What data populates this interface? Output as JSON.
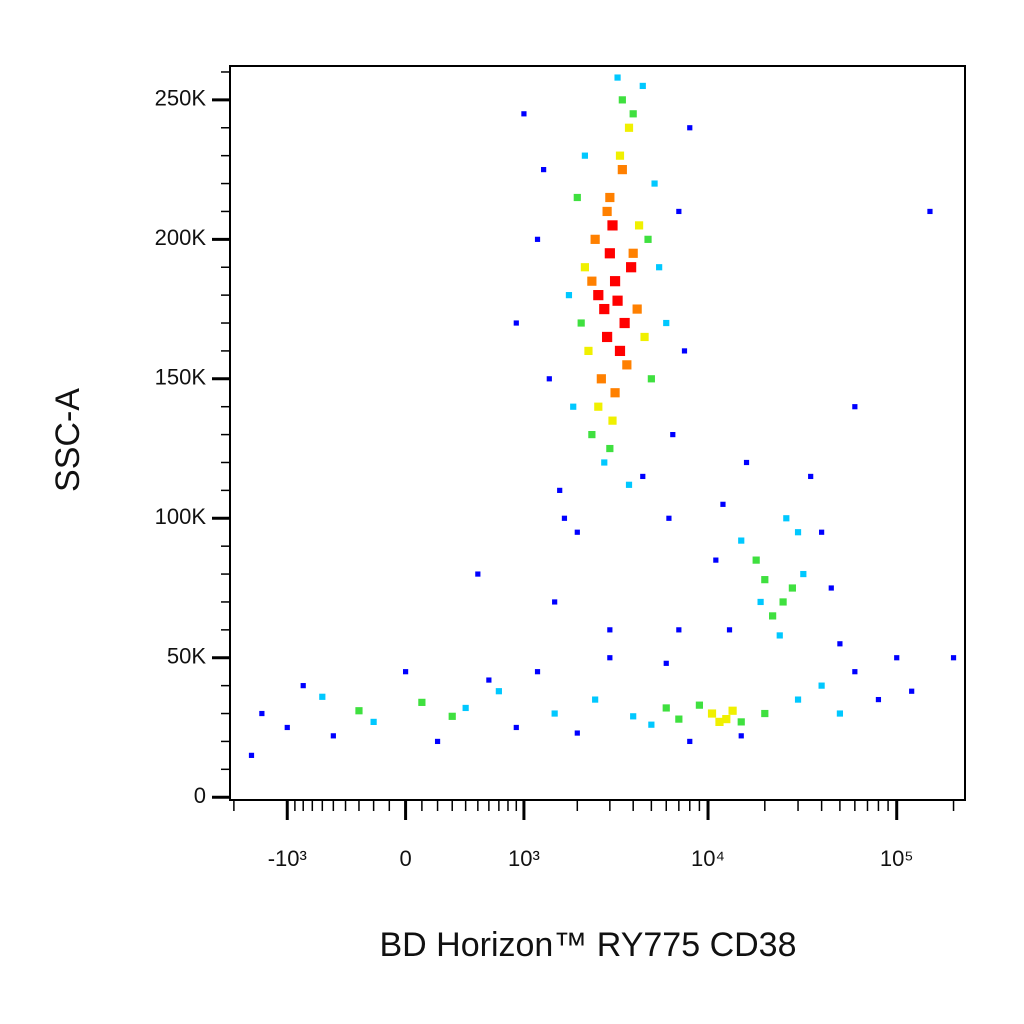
{
  "chart_data": {
    "type": "scatter",
    "x_label": "BD Horizon™ RY775 CD38",
    "y_label": "SSC-A",
    "xscale": "biexponential",
    "xlim": [
      -2100,
      230000
    ],
    "ylim": [
      -1000,
      262144
    ],
    "xticks": [
      {
        "value": -1000,
        "label": "-10³"
      },
      0,
      {
        "value": 1000,
        "label": "10³"
      },
      {
        "value": 10000,
        "label": "10⁴"
      },
      {
        "value": 100000,
        "label": "10⁵"
      }
    ],
    "xminor_ticks": [
      -2000,
      -900,
      -800,
      -700,
      -600,
      -500,
      -400,
      -300,
      -200,
      -100,
      100,
      200,
      300,
      400,
      500,
      600,
      700,
      800,
      900,
      2000,
      3000,
      4000,
      5000,
      6000,
      7000,
      8000,
      9000,
      20000,
      30000,
      40000,
      50000,
      60000,
      70000,
      80000,
      90000,
      200000
    ],
    "yticks": [
      0,
      {
        "value": 50000,
        "label": "50K"
      },
      {
        "value": 100000,
        "label": "100K"
      },
      {
        "value": 150000,
        "label": "150K"
      },
      {
        "value": 200000,
        "label": "200K"
      },
      {
        "value": 250000,
        "label": "250K"
      }
    ],
    "yminor_ticks": [
      10000,
      20000,
      30000,
      40000,
      60000,
      70000,
      80000,
      90000,
      110000,
      120000,
      130000,
      140000,
      160000,
      170000,
      180000,
      190000,
      210000,
      220000,
      230000,
      240000,
      260000
    ],
    "series": [
      {
        "color": "#0000ff",
        "x": [
          1200,
          1400,
          7000,
          8000,
          1600,
          6500,
          1000,
          900,
          1300,
          7500,
          1700,
          6200,
          2000,
          4500,
          11000,
          13000,
          45000,
          40000,
          12000,
          50000,
          35000,
          16000,
          -1400,
          -1000,
          -800,
          -500,
          0,
          200,
          600,
          900,
          1200,
          2000,
          3000,
          6000,
          8000,
          15000,
          60000,
          80000,
          100000,
          120000,
          500,
          -1600,
          7000,
          60000,
          150000,
          200000,
          1500,
          3000
        ],
        "y": [
          200000,
          150000,
          210000,
          240000,
          110000,
          130000,
          245000,
          170000,
          225000,
          160000,
          100000,
          100000,
          95000,
          115000,
          85000,
          60000,
          75000,
          95000,
          105000,
          55000,
          115000,
          120000,
          30000,
          25000,
          40000,
          22000,
          45000,
          20000,
          42000,
          25000,
          45000,
          23000,
          50000,
          48000,
          20000,
          22000,
          45000,
          35000,
          50000,
          38000,
          80000,
          15000,
          60000,
          140000,
          210000,
          50000,
          70000,
          60000
        ]
      },
      {
        "color": "#00c8ff",
        "x": [
          1800,
          5500,
          2800,
          4500,
          2200,
          6000,
          1900,
          3300,
          3800,
          5200,
          15000,
          32000,
          24000,
          19000,
          30000,
          26000,
          -600,
          -200,
          400,
          700,
          1500,
          2500,
          4000,
          5000,
          30000,
          40000,
          50000
        ],
        "y": [
          180000,
          190000,
          120000,
          255000,
          230000,
          170000,
          140000,
          258000,
          112000,
          220000,
          92000,
          80000,
          58000,
          70000,
          95000,
          100000,
          36000,
          27000,
          32000,
          38000,
          30000,
          35000,
          29000,
          26000,
          35000,
          40000,
          30000
        ]
      },
      {
        "color": "#3fe03f",
        "x": [
          2000,
          5000,
          3000,
          4000,
          2400,
          4800,
          3500,
          2100,
          20000,
          25000,
          18000,
          28000,
          22000,
          7000,
          9000,
          15000,
          20000,
          6000,
          -300,
          100,
          300
        ],
        "y": [
          215000,
          150000,
          125000,
          245000,
          130000,
          200000,
          250000,
          170000,
          78000,
          70000,
          85000,
          75000,
          65000,
          28000,
          33000,
          27000,
          30000,
          32000,
          31000,
          34000,
          29000
        ]
      },
      {
        "color": "#f0f000",
        "x": [
          2200,
          4600,
          3400,
          2600,
          3800,
          2300,
          4300,
          3100,
          10500,
          12500,
          13500,
          11500
        ],
        "y": [
          190000,
          165000,
          230000,
          140000,
          240000,
          160000,
          205000,
          135000,
          30000,
          28000,
          31000,
          27000
        ]
      },
      {
        "color": "#ff8000",
        "x": [
          2500,
          4200,
          3000,
          3700,
          2700,
          3500,
          2400,
          4000,
          3200,
          2900
        ],
        "y": [
          200000,
          175000,
          215000,
          155000,
          150000,
          225000,
          185000,
          195000,
          145000,
          210000
        ]
      },
      {
        "color": "#ff0000",
        "x": [
          2800,
          3200,
          3600,
          3000,
          3400,
          2600,
          3900,
          3100,
          2900,
          3300
        ],
        "y": [
          175000,
          185000,
          170000,
          195000,
          160000,
          180000,
          190000,
          205000,
          165000,
          178000
        ]
      }
    ]
  }
}
